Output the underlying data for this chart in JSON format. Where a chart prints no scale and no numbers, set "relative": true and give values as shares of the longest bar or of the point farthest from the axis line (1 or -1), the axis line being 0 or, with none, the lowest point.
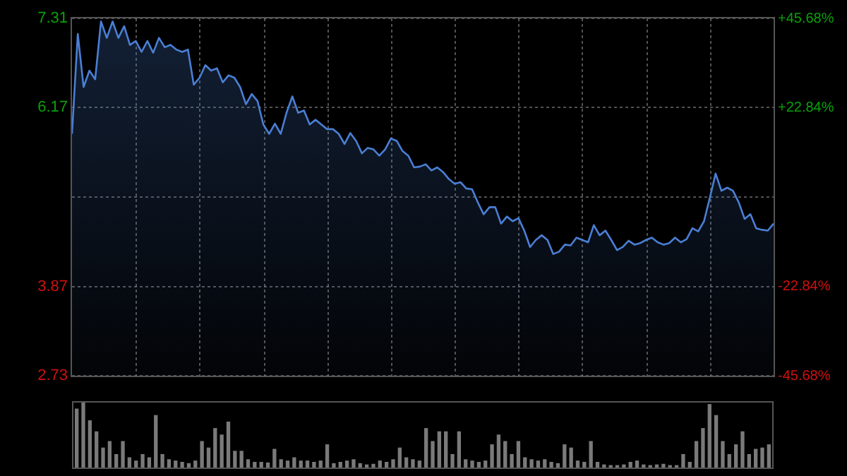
{
  "chart_data": [
    {
      "type": "area",
      "tick_labels": "y",
      "grid": true,
      "legend": false,
      "marker": "none",
      "line_style": "solid",
      "categories": [
        null,
        null,
        null,
        null,
        null,
        null,
        null,
        null,
        null,
        null,
        null,
        null,
        null,
        null,
        null,
        null,
        null,
        null,
        null,
        null,
        null,
        null,
        null,
        null,
        null,
        null,
        null,
        null,
        null,
        null,
        null,
        null,
        null,
        null,
        null,
        null,
        null,
        null,
        null,
        null,
        null,
        null,
        null,
        null,
        null,
        null,
        null,
        null,
        null,
        null,
        null,
        null,
        null,
        null,
        null,
        null,
        null,
        null,
        null,
        null,
        null,
        null,
        null,
        null,
        null,
        null,
        null,
        null,
        null,
        null,
        null,
        null,
        null,
        null,
        null,
        null,
        null,
        null,
        null,
        null,
        null,
        null,
        null,
        null,
        null,
        null,
        null,
        null,
        null,
        null,
        null,
        null,
        null,
        null,
        null,
        null,
        null,
        null,
        null,
        null,
        null,
        null,
        null,
        null,
        null,
        null,
        null,
        null,
        null,
        null,
        null,
        null,
        null,
        null,
        null,
        null,
        null,
        null,
        null,
        null,
        null,
        null
      ],
      "ylim": [
        2.73,
        7.31
      ],
      "yticks": [
        2.73,
        3.87,
        {
          "value": 5.02,
          "label": null
        },
        6.17,
        7.31
      ],
      "y2lim": [
        -45.68,
        45.68
      ],
      "y2ticks": [
        {
          "value": -45.68,
          "label": "-45.68%"
        },
        {
          "value": -22.84,
          "label": "-22.84%"
        },
        {
          "value": 0,
          "label": null
        },
        {
          "value": 22.84,
          "label": "+22.84%"
        },
        {
          "value": 45.68,
          "label": "+45.68%"
        }
      ],
      "series": [
        {
          "color": "#4a7fd4",
          "values": [
            5.83,
            7.11,
            6.43,
            6.64,
            6.53,
            7.27,
            7.06,
            7.27,
            7.06,
            7.21,
            6.97,
            7.02,
            6.88,
            7.02,
            6.87,
            7.06,
            6.94,
            6.97,
            6.91,
            6.88,
            6.91,
            6.46,
            6.55,
            6.71,
            6.64,
            6.67,
            6.49,
            6.58,
            6.55,
            6.43,
            6.21,
            6.34,
            6.25,
            5.95,
            5.83,
            5.96,
            5.83,
            6.1,
            6.31,
            6.1,
            6.13,
            5.95,
            6.01,
            5.95,
            5.89,
            5.89,
            5.83,
            5.7,
            5.84,
            5.74,
            5.58,
            5.65,
            5.63,
            5.55,
            5.63,
            5.77,
            5.74,
            5.61,
            5.55,
            5.4,
            5.41,
            5.44,
            5.36,
            5.4,
            5.34,
            5.25,
            5.19,
            5.21,
            5.13,
            5.12,
            4.95,
            4.8,
            4.89,
            4.89,
            4.68,
            4.77,
            4.71,
            4.75,
            4.59,
            4.38,
            4.47,
            4.53,
            4.47,
            4.29,
            4.32,
            4.41,
            4.4,
            4.5,
            4.47,
            4.44,
            4.66,
            4.53,
            4.59,
            4.47,
            4.34,
            4.38,
            4.46,
            4.41,
            4.43,
            4.47,
            4.5,
            4.44,
            4.41,
            4.43,
            4.5,
            4.44,
            4.48,
            4.62,
            4.58,
            4.71,
            5.01,
            5.32,
            5.1,
            5.14,
            5.1,
            4.95,
            4.74,
            4.8,
            4.62,
            4.6,
            4.59,
            4.68
          ]
        }
      ]
    },
    {
      "type": "bar",
      "relative": true,
      "legend": false,
      "tick_labels": false,
      "categories": [
        null,
        null,
        null,
        null,
        null,
        null,
        null,
        null,
        null,
        null,
        null,
        null,
        null,
        null,
        null,
        null,
        null,
        null,
        null,
        null,
        null,
        null,
        null,
        null,
        null,
        null,
        null,
        null,
        null,
        null,
        null,
        null,
        null,
        null,
        null,
        null,
        null,
        null,
        null,
        null,
        null,
        null,
        null,
        null,
        null,
        null,
        null,
        null,
        null,
        null,
        null,
        null,
        null,
        null,
        null,
        null,
        null,
        null,
        null,
        null,
        null,
        null,
        null,
        null,
        null,
        null,
        null,
        null,
        null,
        null,
        null,
        null,
        null,
        null,
        null,
        null,
        null,
        null,
        null,
        null,
        null,
        null,
        null,
        null,
        null,
        null,
        null,
        null,
        null,
        null,
        null,
        null,
        null,
        null,
        null,
        null,
        null,
        null,
        null,
        null,
        null,
        null,
        null,
        null,
        null,
        null
      ],
      "series": [
        {
          "color": "#7a7a7a",
          "values": [
            0.9,
            1,
            0.72,
            0.55,
            0.3,
            0.4,
            0.2,
            0.4,
            0.15,
            0.1,
            0.2,
            0.15,
            0.8,
            0.2,
            0.12,
            0.1,
            0.08,
            0.06,
            0.1,
            0.4,
            0.3,
            0.6,
            0.5,
            0.7,
            0.25,
            0.25,
            0.12,
            0.08,
            0.08,
            0.07,
            0.28,
            0.12,
            0.1,
            0.15,
            0.1,
            0.1,
            0.08,
            0.1,
            0.35,
            0.06,
            0.08,
            0.1,
            0.12,
            0.06,
            0.04,
            0.05,
            0.1,
            0.08,
            0.12,
            0.3,
            0.15,
            0.12,
            0.1,
            0.6,
            0.4,
            0.55,
            0.55,
            0.2,
            0.55,
            0.12,
            0.1,
            0.08,
            0.1,
            0.35,
            0.5,
            0.4,
            0.2,
            0.4,
            0.15,
            0.12,
            0.1,
            0.12,
            0.08,
            0.06,
            0.35,
            0.3,
            0.1,
            0.08,
            0.4,
            0.08,
            0.04,
            0.03,
            0.03,
            0.04,
            0.08,
            0.1,
            0.04,
            0.03,
            0.04,
            0.05,
            0.03,
            0.03,
            0.2,
            0.08,
            0.4,
            0.6,
            0.97,
            0.8,
            0.4,
            0.2,
            0.35,
            0.55,
            0.2,
            0.28,
            0.3,
            0.35
          ]
        }
      ]
    }
  ]
}
